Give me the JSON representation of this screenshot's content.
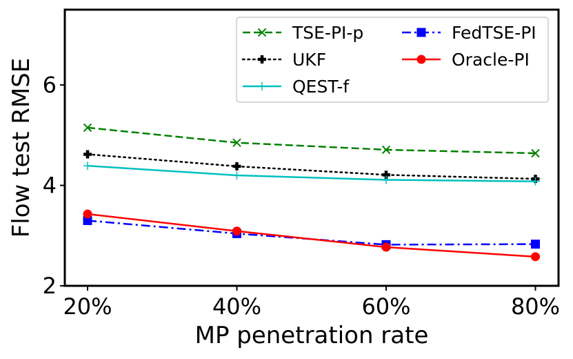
{
  "chart_data": {
    "type": "line",
    "title": "",
    "xlabel": "MP penetration rate",
    "ylabel": "Flow test RMSE",
    "categories": [
      "20%",
      "40%",
      "60%",
      "80%"
    ],
    "yticks": [
      2,
      4,
      6
    ],
    "ylim": [
      2,
      7.5
    ],
    "grid": false,
    "legend_position": "top-right",
    "series": [
      {
        "name": "TSE-PI-p",
        "values": [
          5.15,
          4.85,
          4.71,
          4.64
        ],
        "color": "#008000",
        "dash": "dashed",
        "marker": "x"
      },
      {
        "name": "UKF",
        "values": [
          4.62,
          4.38,
          4.21,
          4.13
        ],
        "color": "#000000",
        "dash": "dotted",
        "marker": "plus-bold"
      },
      {
        "name": "QEST-f",
        "values": [
          4.39,
          4.2,
          4.11,
          4.08
        ],
        "color": "#00bfbf",
        "dash": "solid",
        "marker": "plus"
      },
      {
        "name": "FedTSE-PI",
        "values": [
          3.3,
          3.04,
          2.82,
          2.83
        ],
        "color": "#0000ff",
        "dash": "dashdot",
        "marker": "square"
      },
      {
        "name": "Oracle-PI",
        "values": [
          3.43,
          3.09,
          2.77,
          2.58
        ],
        "color": "#ff0000",
        "dash": "solid",
        "marker": "circle"
      }
    ]
  }
}
